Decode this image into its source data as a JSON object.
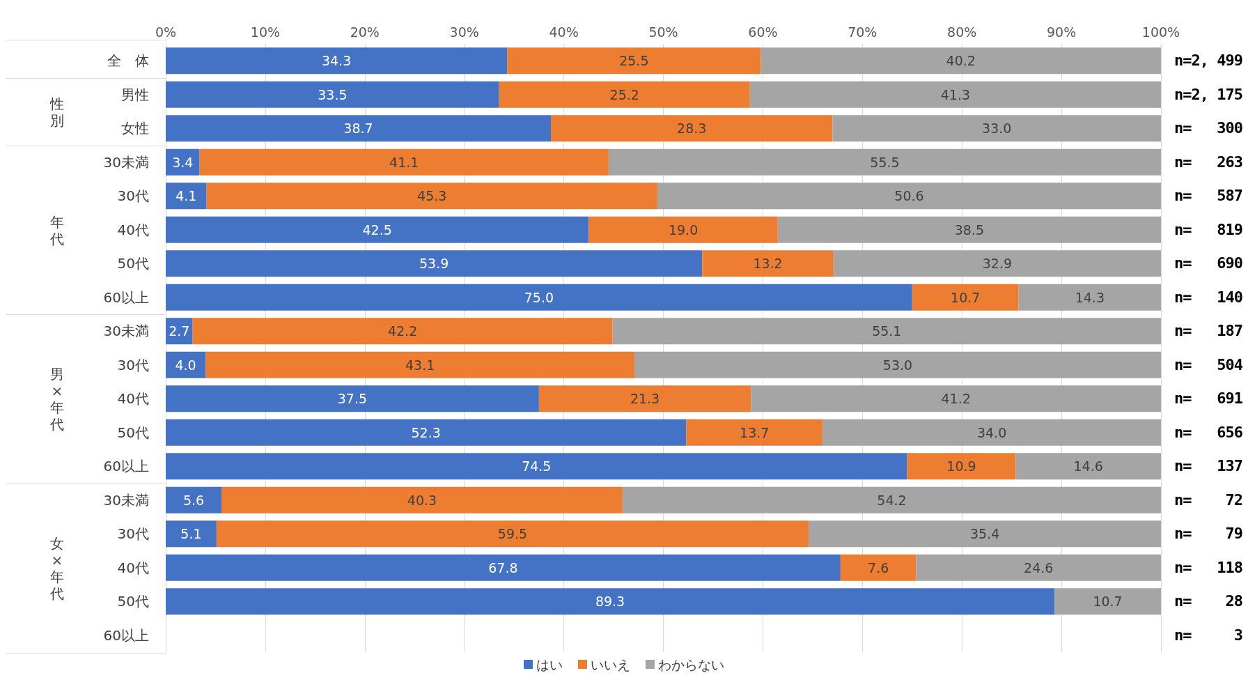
{
  "chart_data": {
    "type": "bar",
    "orientation": "horizontal",
    "stacked": true,
    "categories": [
      "全　体",
      "男性",
      "女性",
      "30未満",
      "30代",
      "40代",
      "50代",
      "60以上",
      "30未満",
      "30代",
      "40代",
      "50代",
      "60以上",
      "30未満",
      "30代",
      "40代",
      "50代",
      "60以上"
    ],
    "series": [
      {
        "name": "はい",
        "color": "#4472c4",
        "values": [
          34.3,
          33.5,
          38.7,
          3.4,
          4.1,
          42.5,
          53.9,
          75.0,
          2.7,
          4.0,
          37.5,
          52.3,
          74.5,
          5.6,
          5.1,
          67.8,
          89.3,
          null
        ],
        "value_labels": [
          "34.3",
          "33.5",
          "38.7",
          "3.4",
          "4.1",
          "42.5",
          "53.9",
          "75.0",
          "2.7",
          "4.0",
          "37.5",
          "52.3",
          "74.5",
          "5.6",
          "5.1",
          "67.8",
          "89.3",
          null
        ]
      },
      {
        "name": "いいえ",
        "color": "#ed7d31",
        "values": [
          25.5,
          25.2,
          28.3,
          41.1,
          45.3,
          19.0,
          13.2,
          10.7,
          42.2,
          43.1,
          21.3,
          13.7,
          10.9,
          40.3,
          59.5,
          7.6,
          null,
          null
        ],
        "value_labels": [
          "25.5",
          "25.2",
          "28.3",
          "41.1",
          "45.3",
          "19.0",
          "13.2",
          "10.7",
          "42.2",
          "43.1",
          "21.3",
          "13.7",
          "10.9",
          "40.3",
          "59.5",
          "7.6",
          null,
          null
        ]
      },
      {
        "name": "わからない",
        "color": "#a5a5a5",
        "values": [
          40.2,
          41.3,
          33.0,
          55.5,
          50.6,
          38.5,
          32.9,
          14.3,
          55.1,
          53.0,
          41.2,
          34.0,
          14.6,
          54.2,
          35.4,
          24.6,
          10.7,
          null
        ],
        "value_labels": [
          "40.2",
          "41.3",
          "33.0",
          "55.5",
          "50.6",
          "38.5",
          "32.9",
          "14.3",
          "55.1",
          "53.0",
          "41.2",
          "34.0",
          "14.6",
          "54.2",
          "35.4",
          "24.6",
          "10.7",
          null
        ]
      }
    ],
    "xlim": [
      0,
      100
    ],
    "xticks": [
      {
        "value": 0,
        "label": "0%"
      },
      {
        "value": 10,
        "label": "10%"
      },
      {
        "value": 20,
        "label": "20%"
      },
      {
        "value": 30,
        "label": "30%"
      },
      {
        "value": 40,
        "label": "40%"
      },
      {
        "value": 50,
        "label": "50%"
      },
      {
        "value": 60,
        "label": "60%"
      },
      {
        "value": 70,
        "label": "70%"
      },
      {
        "value": 80,
        "label": "80%"
      },
      {
        "value": 90,
        "label": "90%"
      },
      {
        "value": 100,
        "label": "100%"
      }
    ],
    "grid": "x",
    "legend": "bottom",
    "annotations": [
      "性別",
      "年代",
      "男×年代",
      "女×年代",
      "n=2, 499",
      "n=2, 175",
      "n=   300",
      "n=   263",
      "n=   587",
      "n=   819",
      "n=   690",
      "n=   140",
      "n=   187",
      "n=   504",
      "n=   691",
      "n=   656",
      "n=   137",
      "n=    72",
      "n=    79",
      "n=   118",
      "n=    28",
      "n=     3"
    ]
  }
}
